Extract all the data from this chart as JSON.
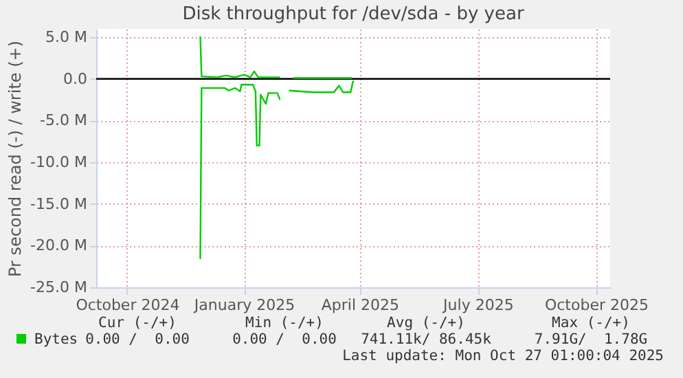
{
  "chart_data": {
    "type": "line",
    "title": "Disk throughput for /dev/sda - by year",
    "ylabel": "Pr second read (-) / write (+)",
    "xlim": [
      "2024-09-22",
      "2025-10-27"
    ],
    "xticks": [
      {
        "value": "2024-10-16",
        "label": "October 2024"
      },
      {
        "value": "2025-01-15",
        "label": "January 2025"
      },
      {
        "value": "2025-04-15",
        "label": "April 2025"
      },
      {
        "value": "2025-07-16",
        "label": "July 2025"
      },
      {
        "value": "2025-10-16",
        "label": "October 2025"
      }
    ],
    "ylim": [
      -25,
      6
    ],
    "yticks": [
      {
        "value": 5,
        "label": "5.0 M"
      },
      {
        "value": 0,
        "label": "0.0"
      },
      {
        "value": -5,
        "label": "-5.0 M"
      },
      {
        "value": -10,
        "label": "-10.0 M"
      },
      {
        "value": -15,
        "label": "-15.0 M"
      },
      {
        "value": -20,
        "label": "-20.0 M"
      },
      {
        "value": -25,
        "label": "-25.0 M"
      }
    ],
    "grid": true,
    "legend": "bottom",
    "series": [
      {
        "name": "Bytes",
        "color": "#00cc00",
        "x": [
          "2024-12-12",
          "2024-12-13",
          "2024-12-25",
          "2025-01-01",
          "2025-01-08",
          "2025-01-15",
          "2025-01-20",
          "2025-01-23",
          "2025-01-26",
          "2025-02-12",
          "2025-02-17",
          "2025-02-22",
          "2025-03-15",
          "2025-04-09"
        ],
        "values": [
          5.1,
          0.3,
          0.2,
          0.4,
          0.2,
          0.5,
          0.2,
          0.9,
          0.2,
          0.2,
          null,
          0.1,
          0.1,
          0.1
        ]
      },
      {
        "color": "#00cc00",
        "x": [
          "2024-12-12",
          "2024-12-13",
          "2024-12-31",
          "2025-01-03",
          "2025-01-08",
          "2025-01-12",
          "2025-01-13",
          "2025-01-22",
          "2025-01-24",
          "2025-01-25",
          "2025-01-27",
          "2025-01-28",
          "2025-02-01",
          "2025-02-03",
          "2025-02-10",
          "2025-02-12",
          "2025-02-17",
          "2025-02-19",
          "2025-03-10",
          "2025-03-26",
          "2025-03-30",
          "2025-04-02",
          "2025-04-08",
          "2025-04-10"
        ],
        "values": [
          -21.6,
          -1.1,
          -1.1,
          -1.4,
          -1.1,
          -1.5,
          -0.7,
          -0.7,
          -1.5,
          -8.0,
          -8.0,
          -1.9,
          -3.0,
          -1.7,
          -1.7,
          -2.5,
          null,
          -1.4,
          -1.6,
          -1.6,
          -0.8,
          -1.6,
          -1.6,
          -0.2
        ]
      }
    ],
    "ref_lines": [
      {
        "axis": "y",
        "value": 0,
        "color": "#000000"
      }
    ],
    "annotations": [
      "Cur (-/+)",
      "Min (-/+)",
      "Avg (-/+)",
      "Max (-/+)",
      "0.00 /  0.00",
      "0.00 /  0.00",
      "741.11k/ 86.45k",
      "7.91G/  1.78G",
      "Last update: Mon Oct 27 01:00:04 2025"
    ]
  }
}
